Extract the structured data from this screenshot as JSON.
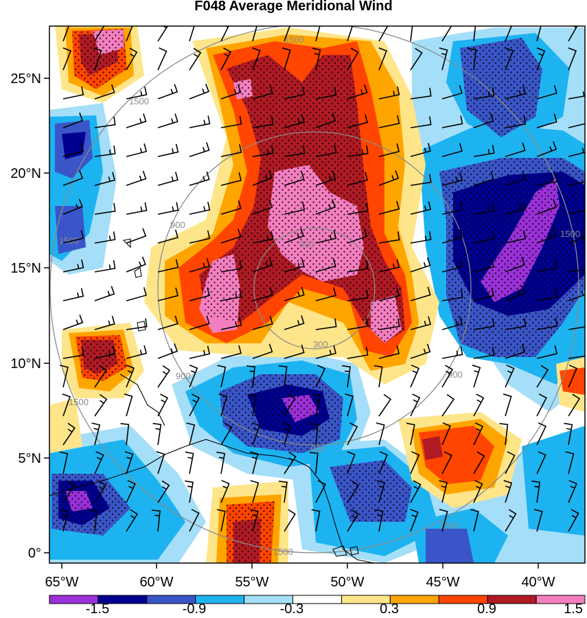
{
  "title": "F048 Average Meridional Wind",
  "map": {
    "y_ticks": [
      "25°N",
      "20°N",
      "15°N",
      "10°N",
      "5°N",
      "0°"
    ],
    "x_ticks": [
      "65°W",
      "60°W",
      "55°W",
      "50°W",
      "45°W",
      "40°W"
    ],
    "lon_range": [
      -65,
      -37
    ],
    "lat_range": [
      -1,
      27.5
    ],
    "range_ring_labels": [
      "300",
      "300",
      "900",
      "900",
      "900",
      "900",
      "1500",
      "1500",
      "1500",
      "1500",
      "1500",
      "1500",
      "1500"
    ],
    "stippling": "dots over significant areas",
    "overlays": [
      "wind barbs",
      "coastlines",
      "range rings"
    ]
  },
  "colorbar": {
    "labels": [
      "-1.5",
      "-0.9",
      "-0.3",
      "0.3",
      "0.9",
      "1.5"
    ],
    "colors": [
      "#9b30d9",
      "#000090",
      "#3a55c8",
      "#1db3f0",
      "#a5def8",
      "#ffffff",
      "#ffe58a",
      "#ffa500",
      "#ff4500",
      "#b01a24",
      "#f47fc0"
    ]
  },
  "palette": {
    "magenta": "#f47fc0",
    "dark_red": "#b01a24",
    "red_orange": "#ff4500",
    "orange": "#ffa500",
    "light_yellow": "#ffe58a",
    "light_blue": "#a5def8",
    "cyan": "#1db3f0",
    "medium_blue": "#3a55c8",
    "navy": "#000090",
    "purple": "#9b30d9"
  }
}
